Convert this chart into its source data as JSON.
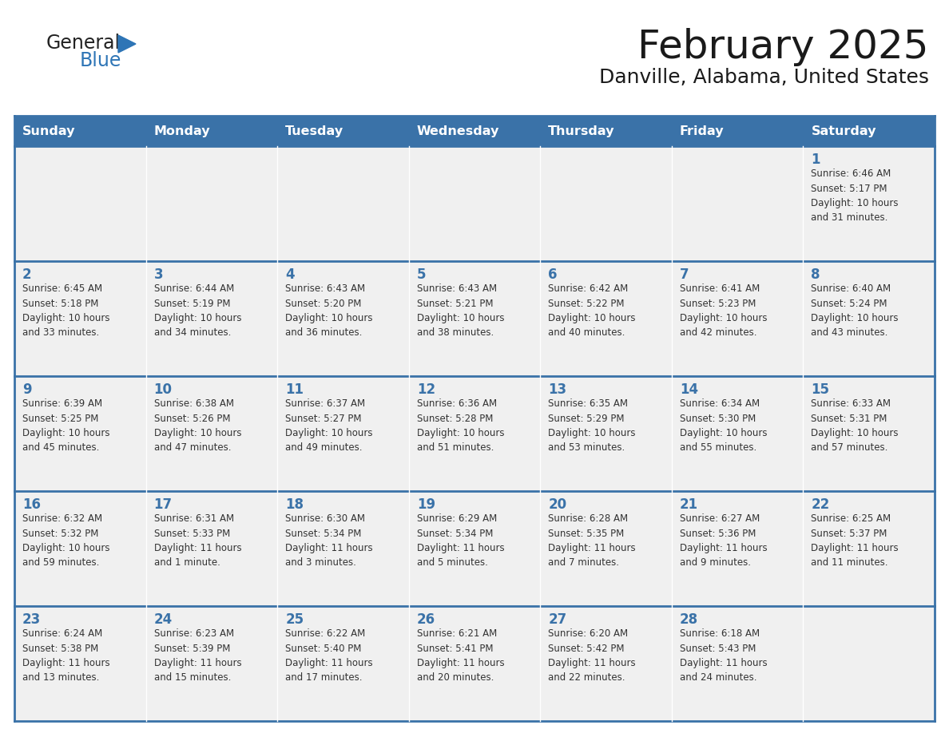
{
  "title": "February 2025",
  "subtitle": "Danville, Alabama, United States",
  "header_bg": "#3a72a8",
  "header_text_color": "#ffffff",
  "cell_bg": "#f0f0f0",
  "day_number_color": "#3a72a8",
  "text_color": "#333333",
  "border_color": "#3a72a8",
  "days_of_week": [
    "Sunday",
    "Monday",
    "Tuesday",
    "Wednesday",
    "Thursday",
    "Friday",
    "Saturday"
  ],
  "weeks": [
    [
      {
        "day": "",
        "info": ""
      },
      {
        "day": "",
        "info": ""
      },
      {
        "day": "",
        "info": ""
      },
      {
        "day": "",
        "info": ""
      },
      {
        "day": "",
        "info": ""
      },
      {
        "day": "",
        "info": ""
      },
      {
        "day": "1",
        "info": "Sunrise: 6:46 AM\nSunset: 5:17 PM\nDaylight: 10 hours\nand 31 minutes."
      }
    ],
    [
      {
        "day": "2",
        "info": "Sunrise: 6:45 AM\nSunset: 5:18 PM\nDaylight: 10 hours\nand 33 minutes."
      },
      {
        "day": "3",
        "info": "Sunrise: 6:44 AM\nSunset: 5:19 PM\nDaylight: 10 hours\nand 34 minutes."
      },
      {
        "day": "4",
        "info": "Sunrise: 6:43 AM\nSunset: 5:20 PM\nDaylight: 10 hours\nand 36 minutes."
      },
      {
        "day": "5",
        "info": "Sunrise: 6:43 AM\nSunset: 5:21 PM\nDaylight: 10 hours\nand 38 minutes."
      },
      {
        "day": "6",
        "info": "Sunrise: 6:42 AM\nSunset: 5:22 PM\nDaylight: 10 hours\nand 40 minutes."
      },
      {
        "day": "7",
        "info": "Sunrise: 6:41 AM\nSunset: 5:23 PM\nDaylight: 10 hours\nand 42 minutes."
      },
      {
        "day": "8",
        "info": "Sunrise: 6:40 AM\nSunset: 5:24 PM\nDaylight: 10 hours\nand 43 minutes."
      }
    ],
    [
      {
        "day": "9",
        "info": "Sunrise: 6:39 AM\nSunset: 5:25 PM\nDaylight: 10 hours\nand 45 minutes."
      },
      {
        "day": "10",
        "info": "Sunrise: 6:38 AM\nSunset: 5:26 PM\nDaylight: 10 hours\nand 47 minutes."
      },
      {
        "day": "11",
        "info": "Sunrise: 6:37 AM\nSunset: 5:27 PM\nDaylight: 10 hours\nand 49 minutes."
      },
      {
        "day": "12",
        "info": "Sunrise: 6:36 AM\nSunset: 5:28 PM\nDaylight: 10 hours\nand 51 minutes."
      },
      {
        "day": "13",
        "info": "Sunrise: 6:35 AM\nSunset: 5:29 PM\nDaylight: 10 hours\nand 53 minutes."
      },
      {
        "day": "14",
        "info": "Sunrise: 6:34 AM\nSunset: 5:30 PM\nDaylight: 10 hours\nand 55 minutes."
      },
      {
        "day": "15",
        "info": "Sunrise: 6:33 AM\nSunset: 5:31 PM\nDaylight: 10 hours\nand 57 minutes."
      }
    ],
    [
      {
        "day": "16",
        "info": "Sunrise: 6:32 AM\nSunset: 5:32 PM\nDaylight: 10 hours\nand 59 minutes."
      },
      {
        "day": "17",
        "info": "Sunrise: 6:31 AM\nSunset: 5:33 PM\nDaylight: 11 hours\nand 1 minute."
      },
      {
        "day": "18",
        "info": "Sunrise: 6:30 AM\nSunset: 5:34 PM\nDaylight: 11 hours\nand 3 minutes."
      },
      {
        "day": "19",
        "info": "Sunrise: 6:29 AM\nSunset: 5:34 PM\nDaylight: 11 hours\nand 5 minutes."
      },
      {
        "day": "20",
        "info": "Sunrise: 6:28 AM\nSunset: 5:35 PM\nDaylight: 11 hours\nand 7 minutes."
      },
      {
        "day": "21",
        "info": "Sunrise: 6:27 AM\nSunset: 5:36 PM\nDaylight: 11 hours\nand 9 minutes."
      },
      {
        "day": "22",
        "info": "Sunrise: 6:25 AM\nSunset: 5:37 PM\nDaylight: 11 hours\nand 11 minutes."
      }
    ],
    [
      {
        "day": "23",
        "info": "Sunrise: 6:24 AM\nSunset: 5:38 PM\nDaylight: 11 hours\nand 13 minutes."
      },
      {
        "day": "24",
        "info": "Sunrise: 6:23 AM\nSunset: 5:39 PM\nDaylight: 11 hours\nand 15 minutes."
      },
      {
        "day": "25",
        "info": "Sunrise: 6:22 AM\nSunset: 5:40 PM\nDaylight: 11 hours\nand 17 minutes."
      },
      {
        "day": "26",
        "info": "Sunrise: 6:21 AM\nSunset: 5:41 PM\nDaylight: 11 hours\nand 20 minutes."
      },
      {
        "day": "27",
        "info": "Sunrise: 6:20 AM\nSunset: 5:42 PM\nDaylight: 11 hours\nand 22 minutes."
      },
      {
        "day": "28",
        "info": "Sunrise: 6:18 AM\nSunset: 5:43 PM\nDaylight: 11 hours\nand 24 minutes."
      },
      {
        "day": "",
        "info": ""
      }
    ]
  ],
  "logo_text_general": "General",
  "logo_text_blue": "Blue",
  "logo_triangle_color": "#2e75b6"
}
